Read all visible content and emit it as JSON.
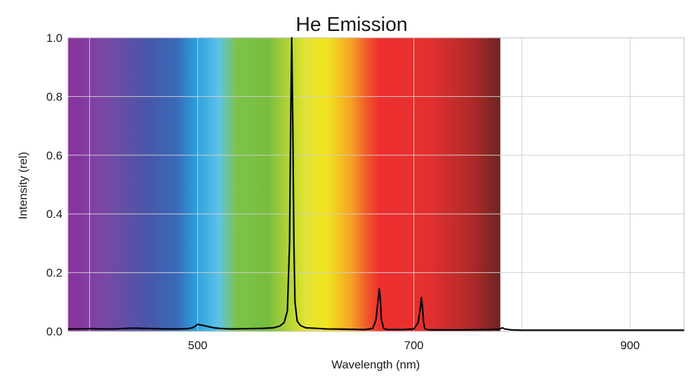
{
  "chart_data": {
    "type": "line",
    "title": "He Emission",
    "xlabel": "Wavelength (nm)",
    "ylabel": "Intensity (rel)",
    "xlim": [
      380,
      950
    ],
    "ylim": [
      0,
      1.0
    ],
    "x_ticks": [
      500,
      700,
      900
    ],
    "x_tick_labels": [
      "500",
      "700",
      "900"
    ],
    "y_ticks": [
      0,
      0.2,
      0.4,
      0.6,
      0.8,
      1.0
    ],
    "y_tick_labels": [
      "0.0",
      "0.2",
      "0.4",
      "0.6",
      "0.8",
      "1.0"
    ],
    "x_minor_gridlines": [
      400,
      600,
      800
    ],
    "grid": true,
    "legend": "none",
    "visible_spectrum_band": [
      380,
      780
    ],
    "series": [
      {
        "color": "#000000",
        "x": [
          380,
          400,
          420,
          440,
          460,
          480,
          490,
          495,
          498,
          500,
          502,
          505,
          510,
          515,
          520,
          530,
          545,
          560,
          570,
          576,
          580,
          583,
          585,
          586,
          587,
          588,
          589,
          590,
          592,
          595,
          600,
          620,
          640,
          655,
          662,
          665,
          667,
          668,
          669,
          670,
          672,
          675,
          690,
          700,
          704,
          706,
          707,
          708,
          709,
          710,
          712,
          716,
          730,
          750,
          770,
          778,
          780,
          782,
          784,
          790,
          800,
          820,
          850,
          880,
          900,
          920,
          950
        ],
        "y": [
          0.008,
          0.009,
          0.008,
          0.011,
          0.009,
          0.008,
          0.009,
          0.012,
          0.018,
          0.024,
          0.022,
          0.02,
          0.016,
          0.012,
          0.01,
          0.008,
          0.009,
          0.01,
          0.012,
          0.018,
          0.03,
          0.07,
          0.3,
          0.7,
          1.0,
          0.7,
          0.3,
          0.1,
          0.035,
          0.02,
          0.012,
          0.008,
          0.007,
          0.006,
          0.01,
          0.04,
          0.11,
          0.145,
          0.11,
          0.04,
          0.01,
          0.006,
          0.006,
          0.008,
          0.03,
          0.08,
          0.115,
          0.08,
          0.03,
          0.01,
          0.006,
          0.005,
          0.005,
          0.005,
          0.006,
          0.007,
          0.009,
          0.012,
          0.008,
          0.005,
          0.004,
          0.004,
          0.004,
          0.004,
          0.004,
          0.004,
          0.004
        ]
      }
    ]
  }
}
